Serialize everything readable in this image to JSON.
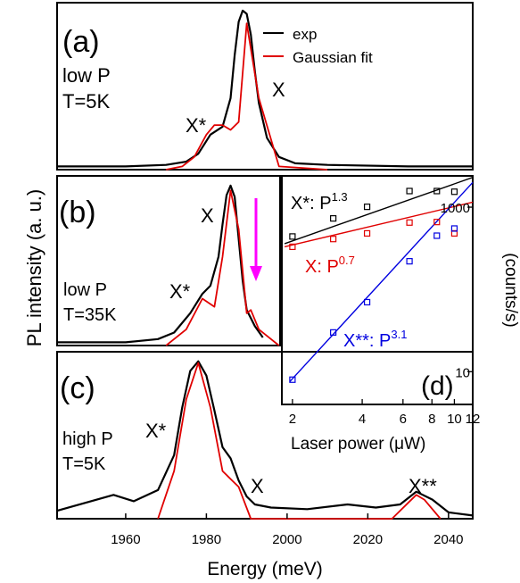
{
  "figure": {
    "ylabel": "PL intensity (a. u.)",
    "xlabel": "Energy (meV)"
  },
  "legend": {
    "items": [
      "exp",
      "Gaussian fit"
    ]
  },
  "chart_data": [
    {
      "panel": "(a)",
      "type": "line",
      "notes": [
        "low P",
        "T=5K"
      ],
      "peak_labels": [
        "X*",
        "X"
      ],
      "xlim": [
        1943,
        2046
      ],
      "ylim": [
        0,
        1.05
      ],
      "series": [
        {
          "name": "exp",
          "color": "#000000",
          "x": [
            1943,
            1960,
            1970,
            1975,
            1978,
            1981,
            1984,
            1986,
            1987,
            1988,
            1989,
            1990,
            1991,
            1992,
            1993,
            1995,
            1998,
            2002,
            2010,
            2030,
            2046
          ],
          "y": [
            0.02,
            0.02,
            0.03,
            0.05,
            0.1,
            0.22,
            0.27,
            0.45,
            0.72,
            0.93,
            1.0,
            0.98,
            0.85,
            0.62,
            0.42,
            0.2,
            0.08,
            0.04,
            0.03,
            0.02,
            0.02
          ]
        },
        {
          "name": "Gaussian fit",
          "color": "#e00000",
          "x": [
            1970,
            1974,
            1977,
            1980,
            1982,
            1984,
            1986,
            1988,
            1990,
            1993,
            1998,
            2010
          ],
          "y": [
            0.0,
            0.02,
            0.08,
            0.22,
            0.28,
            0.28,
            0.25,
            0.3,
            0.92,
            0.45,
            0.02,
            0.0
          ]
        }
      ]
    },
    {
      "panel": "(b)",
      "type": "line",
      "notes": [
        "low P",
        "T=35K"
      ],
      "peak_labels": [
        "X*",
        "X"
      ],
      "xlim": [
        1943,
        2046
      ],
      "ylim": [
        0,
        1.05
      ],
      "series": [
        {
          "name": "exp",
          "color": "#000000",
          "x": [
            1943,
            1960,
            1968,
            1972,
            1976,
            1979,
            1981,
            1983,
            1984,
            1985,
            1986,
            1987,
            1988,
            1989,
            1990,
            1991,
            1992,
            1994,
            2000,
            2046
          ],
          "y": [
            0.02,
            0.02,
            0.04,
            0.08,
            0.2,
            0.32,
            0.37,
            0.55,
            0.75,
            0.93,
            0.99,
            0.92,
            0.66,
            0.4,
            0.22,
            0.17,
            0.12,
            0.05,
            0.03,
            0.02
          ]
        },
        {
          "name": "Gaussian fit",
          "color": "#e00000",
          "x": [
            1970,
            1975,
            1979,
            1982,
            1984,
            1986,
            1988,
            1990,
            1991,
            1993,
            1998
          ],
          "y": [
            0.0,
            0.1,
            0.29,
            0.24,
            0.55,
            0.96,
            0.72,
            0.2,
            0.22,
            0.1,
            0.0
          ]
        }
      ]
    },
    {
      "panel": "(c)",
      "type": "line",
      "notes": [
        "high P",
        "T=5K"
      ],
      "peak_labels": [
        "X*",
        "X",
        "X**"
      ],
      "xlim": [
        1943,
        2046
      ],
      "ylim": [
        0,
        1.05
      ],
      "series": [
        {
          "name": "exp",
          "color": "#000000",
          "x": [
            1943,
            1950,
            1957,
            1962,
            1968,
            1972,
            1974,
            1976,
            1978,
            1980,
            1982,
            1984,
            1986,
            1988,
            1990,
            1992,
            1996,
            2005,
            2015,
            2022,
            2028,
            2032,
            2036,
            2040,
            2046
          ],
          "y": [
            0.05,
            0.1,
            0.15,
            0.11,
            0.18,
            0.4,
            0.7,
            0.93,
            0.99,
            0.9,
            0.68,
            0.45,
            0.38,
            0.24,
            0.14,
            0.09,
            0.07,
            0.06,
            0.09,
            0.07,
            0.09,
            0.17,
            0.12,
            0.04,
            0.02
          ]
        },
        {
          "name": "Gaussian fit",
          "color": "#e00000",
          "x": [
            1968,
            1972,
            1975,
            1978,
            1981,
            1984,
            1986,
            1988,
            1991,
            2026,
            2030,
            2032,
            2034,
            2038
          ],
          "y": [
            0.0,
            0.3,
            0.75,
            0.98,
            0.7,
            0.3,
            0.25,
            0.2,
            0.0,
            0.0,
            0.1,
            0.15,
            0.12,
            0.0
          ]
        }
      ]
    },
    {
      "panel": "(d)",
      "type": "scatter",
      "xlabel": "Laser power (μW)",
      "ylabel": "(counts/s)",
      "xscale": "log",
      "yscale": "log",
      "xlim": [
        1.8,
        12
      ],
      "ylim": [
        4,
        2400
      ],
      "series": [
        {
          "name": "X*",
          "exponent": "1.3",
          "color": "#000000",
          "x": [
            2,
            3,
            4.2,
            6.4,
            8.4,
            10
          ],
          "y": [
            440,
            730,
            1010,
            1570,
            1570,
            1540
          ]
        },
        {
          "name": "X",
          "exponent": "0.7",
          "color": "#e00000",
          "x": [
            2,
            3,
            4.2,
            6.4,
            8.4,
            10
          ],
          "y": [
            330,
            410,
            480,
            650,
            660,
            480
          ]
        },
        {
          "name": "X**",
          "exponent": "3.1",
          "color": "#0000e0",
          "x": [
            2,
            3,
            4.2,
            6.4,
            8.4,
            10
          ],
          "y": [
            8,
            30,
            70,
            220,
            450,
            550
          ]
        }
      ],
      "fits": [
        {
          "series": "X*",
          "x": [
            1.85,
            12
          ],
          "y": [
            360,
            2300
          ]
        },
        {
          "series": "X",
          "x": [
            1.85,
            12
          ],
          "y": [
            330,
            1150
          ]
        },
        {
          "series": "X**",
          "x": [
            1.95,
            12
          ],
          "y": [
            7.6,
            2000
          ]
        }
      ],
      "xticks": [
        "2",
        "4",
        "6",
        "8",
        "10",
        "12"
      ],
      "xtick_values": [
        2,
        4,
        6,
        8,
        10,
        12
      ],
      "yticks": [
        "1000",
        "10"
      ],
      "ytick_values": [
        1000,
        10
      ]
    }
  ],
  "xticks": [
    "1960",
    "1980",
    "2000",
    "2020",
    "2040"
  ],
  "xtick_values": [
    1960,
    1980,
    2000,
    2020,
    2040
  ]
}
